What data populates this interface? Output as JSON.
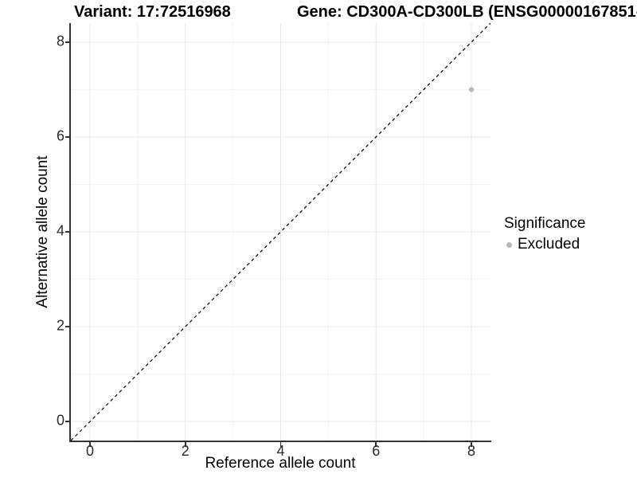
{
  "titles": {
    "variant": "Variant: 17:72516968",
    "gene": "Gene: CD300A-CD300LB (ENSG00000167851-"
  },
  "legend": {
    "title": "Significance",
    "items": [
      {
        "label": "Excluded",
        "color": "#b8b8b8"
      }
    ]
  },
  "chart_data": {
    "type": "scatter",
    "xlabel": "Reference allele count",
    "ylabel": "Alternative allele count",
    "xlim": [
      -0.4,
      8.4
    ],
    "ylim": [
      -0.4,
      8.4
    ],
    "xticks": [
      0,
      2,
      4,
      6,
      8
    ],
    "yticks": [
      0,
      2,
      4,
      6,
      8
    ],
    "x_minor_ticks": [
      1,
      3,
      5,
      7
    ],
    "y_minor_ticks": [
      1,
      3,
      5,
      7
    ],
    "grid": "major+minor",
    "legend_position": "right",
    "series": [
      {
        "name": "Excluded",
        "color": "#b8b8b8",
        "points": [
          {
            "x": 8,
            "y": 7
          }
        ]
      }
    ],
    "reference_line": {
      "equation": "y = x",
      "style": "dashed",
      "color": "#000000"
    }
  },
  "style": {
    "axis_line_color": "#333333",
    "tick_color": "#333333",
    "major_grid_color": "#e6e6e6",
    "minor_grid_color": "#f2f2f2",
    "background": "#ffffff"
  }
}
